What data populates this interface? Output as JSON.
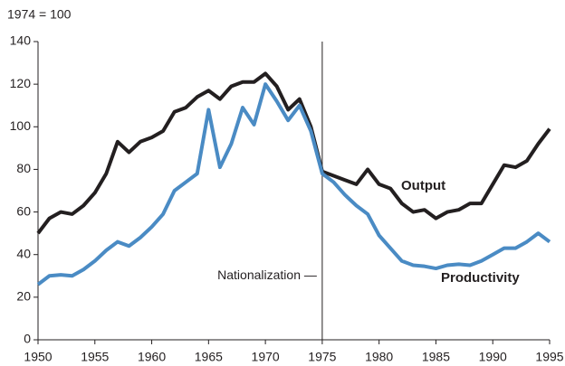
{
  "chart_data": {
    "type": "line",
    "y_label": "1974 = 100",
    "x": [
      1950,
      1951,
      1952,
      1953,
      1954,
      1955,
      1956,
      1957,
      1958,
      1959,
      1960,
      1961,
      1962,
      1963,
      1964,
      1965,
      1966,
      1967,
      1968,
      1969,
      1970,
      1971,
      1972,
      1973,
      1974,
      1975,
      1976,
      1977,
      1978,
      1979,
      1980,
      1981,
      1982,
      1983,
      1984,
      1985,
      1986,
      1987,
      1988,
      1989,
      1990,
      1991,
      1992,
      1993,
      1994,
      1995
    ],
    "series": [
      {
        "name": "Output",
        "color": "#231f20",
        "values": [
          50,
          57,
          60,
          59,
          63,
          69,
          78,
          93,
          88,
          93,
          95,
          98,
          107,
          109,
          114,
          117,
          113,
          119,
          121,
          121,
          125,
          119,
          108,
          113,
          100,
          79,
          77,
          75,
          73,
          80,
          73,
          71,
          64,
          60,
          61,
          57,
          60,
          61,
          64,
          64,
          73,
          82,
          81,
          84,
          92,
          99
        ]
      },
      {
        "name": "Productivity",
        "color": "#4a8bc4",
        "values": [
          26,
          30,
          30.5,
          30,
          33,
          37,
          42,
          46,
          44,
          48,
          53,
          59,
          70,
          74,
          78,
          108,
          81,
          92,
          109,
          101,
          120,
          112,
          103,
          110,
          98,
          78,
          74,
          68,
          63,
          59,
          49,
          43,
          37,
          35,
          34.5,
          33.5,
          35,
          35.5,
          35,
          37,
          40,
          43,
          43,
          46,
          50,
          46
        ]
      }
    ],
    "annotations": [
      {
        "text": "Nationalization —",
        "x": 1975
      }
    ],
    "xlim": [
      1950,
      1995
    ],
    "xticks": [
      1950,
      1955,
      1960,
      1965,
      1970,
      1975,
      1980,
      1985,
      1990,
      1995
    ],
    "ylim": [
      0,
      140
    ],
    "yticks": [
      0,
      20,
      40,
      60,
      80,
      100,
      120,
      140
    ],
    "grid": false
  }
}
